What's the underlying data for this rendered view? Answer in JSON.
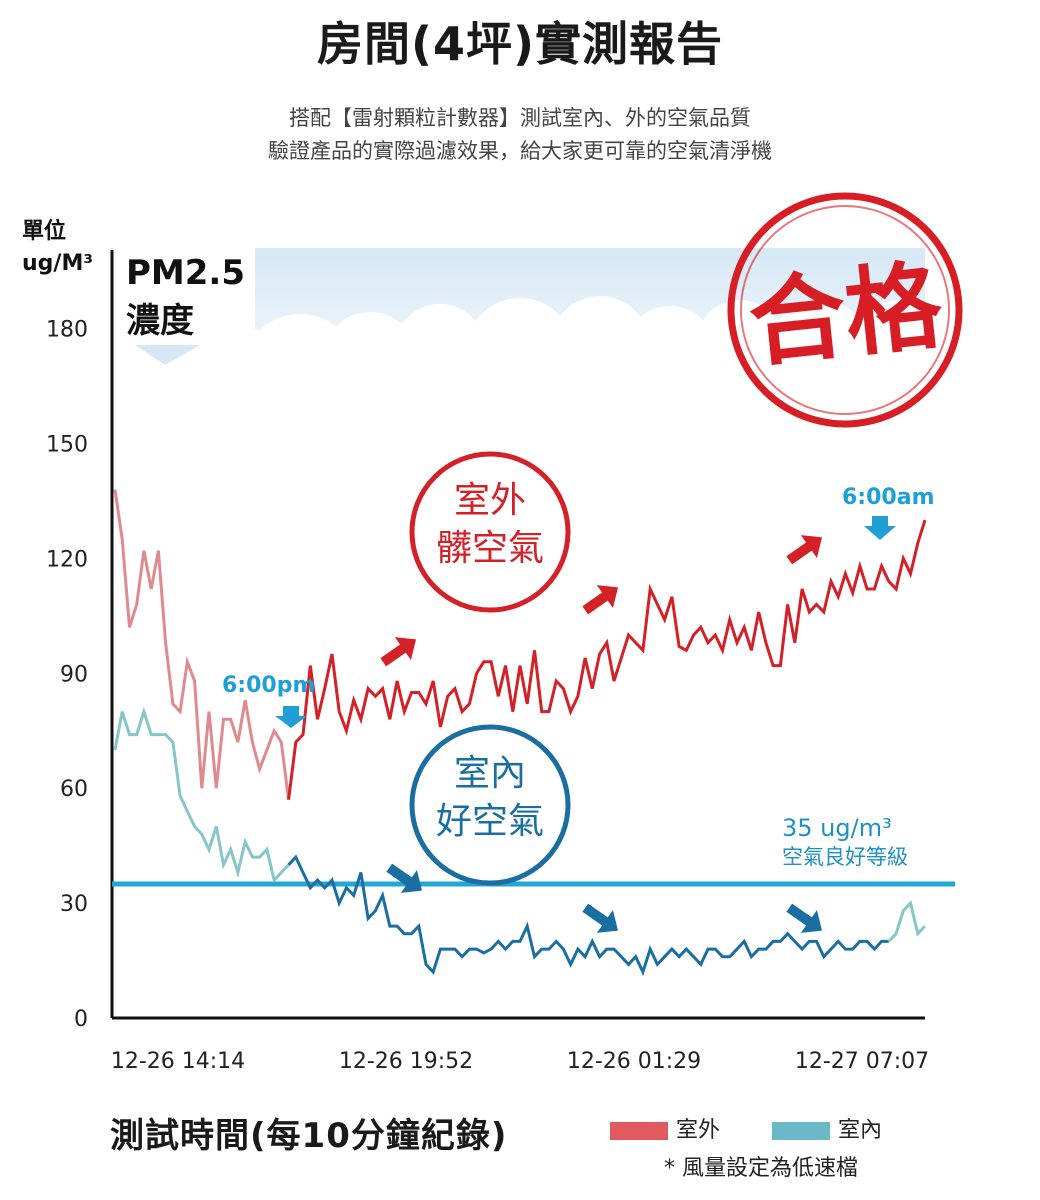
{
  "header": {
    "title": "房間(4坪)實測報告",
    "subtitle_line1": "搭配【雷射顆粒計數器】測試室內、外的空氣品質",
    "subtitle_line2": "驗證產品的實際過濾效果，給大家更可靠的空氣清淨機"
  },
  "stamps": {
    "pass": "合格",
    "outdoor_line1": "室外",
    "outdoor_line2": "髒空氣",
    "indoor_line1": "室內",
    "indoor_line2": "好空氣"
  },
  "annotations": {
    "evening": "6:00pm",
    "morning": "6:00am",
    "threshold_value": "35 ug/m³",
    "threshold_desc": "空氣良好等級"
  },
  "chart_data": {
    "type": "line",
    "title": "PM2.5",
    "title_line2": "濃度",
    "ylabel_line1": "單位",
    "ylabel_line2": "ug/M³",
    "xlabel": "測試時間(每10分鐘紀錄)",
    "ylim": [
      0,
      190
    ],
    "yticks": [
      0,
      30,
      60,
      90,
      120,
      150,
      180
    ],
    "xtick_labels": [
      "12-26 14:14",
      "12-26 19:52",
      "12-26 01:29",
      "12-27 07:07"
    ],
    "threshold": 35,
    "legend_position": "bottom-right",
    "note": "* 風量設定為低速檔",
    "series": [
      {
        "name": "室外",
        "color": "#d42027",
        "values": [
          138,
          125,
          102,
          108,
          122,
          112,
          122,
          98,
          82,
          80,
          93,
          88,
          60,
          80,
          60,
          78,
          78,
          72,
          83,
          72,
          65,
          70,
          75,
          72,
          57,
          72,
          74,
          92,
          78,
          86,
          95,
          80,
          75,
          83,
          78,
          86,
          84,
          86,
          78,
          88,
          80,
          85,
          85,
          82,
          88,
          76,
          84,
          86,
          80,
          82,
          90,
          93,
          93,
          84,
          92,
          80,
          92,
          82,
          96,
          80,
          80,
          88,
          86,
          80,
          84,
          94,
          86,
          95,
          98,
          88,
          94,
          100,
          98,
          96,
          112,
          108,
          104,
          110,
          97,
          96,
          100,
          102,
          98,
          100,
          96,
          104,
          98,
          102,
          96,
          106,
          98,
          92,
          92,
          108,
          98,
          112,
          106,
          108,
          106,
          114,
          110,
          116,
          111,
          118,
          112,
          112,
          118,
          114,
          112,
          120,
          116,
          124,
          130
        ]
      },
      {
        "name": "室內",
        "color": "#1b6ea1",
        "values": [
          70,
          80,
          74,
          74,
          80,
          74,
          74,
          74,
          72,
          58,
          54,
          50,
          48,
          44,
          50,
          40,
          44,
          38,
          46,
          42,
          42,
          44,
          36,
          38,
          40,
          42,
          38,
          34,
          36,
          34,
          36,
          30,
          34,
          32,
          38,
          26,
          28,
          32,
          24,
          24,
          22,
          22,
          24,
          14,
          12,
          18,
          18,
          18,
          16,
          18,
          18,
          17,
          18,
          20,
          18,
          20,
          20,
          24,
          16,
          18,
          18,
          20,
          18,
          14,
          18,
          16,
          20,
          16,
          18,
          18,
          16,
          14,
          16,
          12,
          18,
          14,
          16,
          18,
          16,
          18,
          16,
          14,
          18,
          18,
          16,
          16,
          18,
          20,
          16,
          18,
          18,
          20,
          20,
          22,
          20,
          18,
          20,
          20,
          16,
          18,
          20,
          18,
          18,
          20,
          20,
          18,
          20,
          20,
          22,
          28,
          30,
          22,
          24
        ]
      }
    ]
  }
}
